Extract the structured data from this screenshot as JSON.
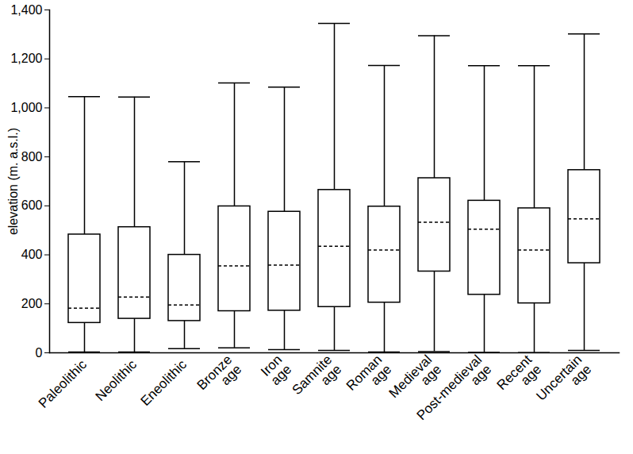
{
  "chart_data": {
    "type": "boxplot",
    "y_label": "elevation (m. a.s.l.)",
    "categories": [
      "Paleolithic",
      "Neolithic",
      "Eneolithic",
      "Bronze age",
      "Iron age",
      "Samnite age",
      "Roman age",
      "Medieval age",
      "Post-medieval age",
      "Recent age",
      "Uncertain age"
    ],
    "min": [
      3,
      3,
      17,
      20,
      13,
      10,
      3,
      5,
      2,
      1,
      10
    ],
    "q1": [
      122,
      139,
      130,
      170,
      172,
      187,
      205,
      332,
      237,
      202,
      366
    ],
    "median": [
      182,
      228,
      195,
      355,
      358,
      435,
      420,
      533,
      505,
      420,
      547
    ],
    "q3": [
      483,
      513,
      400,
      598,
      576,
      665,
      597,
      713,
      621,
      590,
      746
    ],
    "max": [
      1046,
      1044,
      780,
      1102,
      1085,
      1345,
      1173,
      1295,
      1172,
      1172,
      1302
    ],
    "ylim": [
      0,
      1400
    ],
    "yticks": [
      0,
      200,
      400,
      600,
      800,
      1000,
      1200,
      1400
    ],
    "color": "#000000",
    "grid": false
  }
}
